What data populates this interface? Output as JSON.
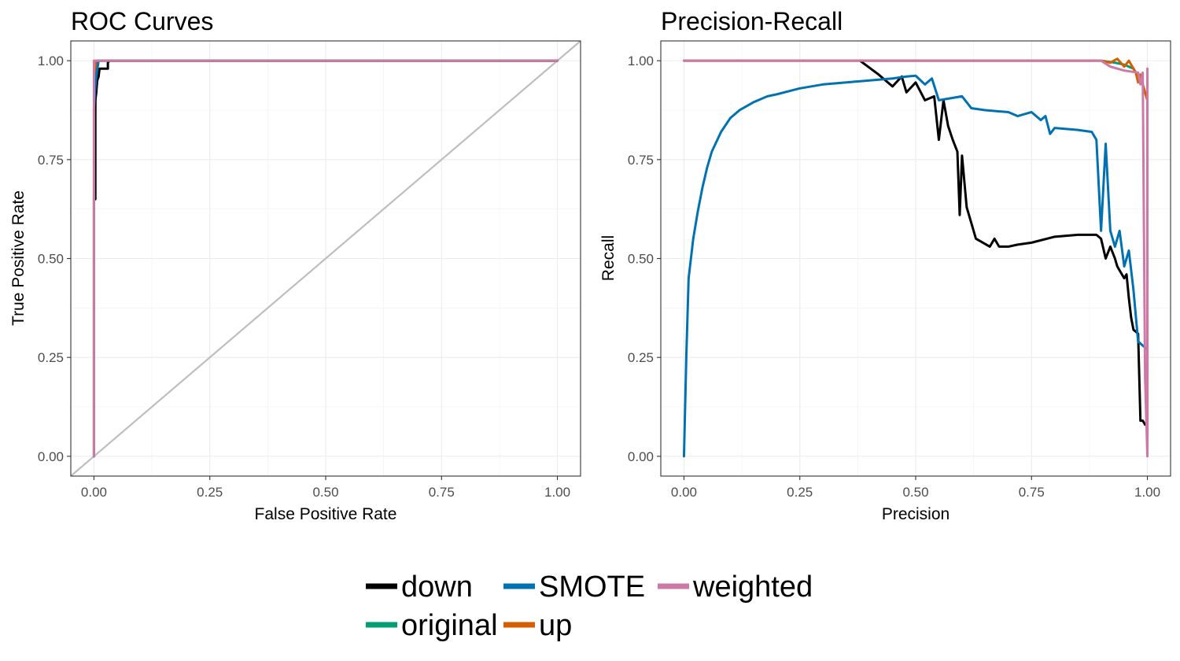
{
  "chart_data": [
    {
      "type": "line",
      "title": "ROC Curves",
      "xlabel": "False Positive Rate",
      "ylabel": "True Positive Rate",
      "xlim": [
        -0.05,
        1.05
      ],
      "ylim": [
        -0.05,
        1.05
      ],
      "xticks": [
        0,
        0.25,
        0.5,
        0.75,
        1
      ],
      "yticks": [
        0,
        0.25,
        0.5,
        0.75,
        1
      ],
      "xtick_labels": [
        "0.00",
        "0.25",
        "0.50",
        "0.75",
        "1.00"
      ],
      "ytick_labels": [
        "0.00",
        "0.25",
        "0.50",
        "0.75",
        "1.00"
      ],
      "grid": true,
      "reference_line": {
        "color": "#bebebe",
        "x": [
          -0.05,
          1.05
        ],
        "y": [
          -0.05,
          1.05
        ]
      },
      "series": [
        {
          "name": "original",
          "color": "#009E73",
          "x": [
            0,
            0,
            0.003,
            0.004,
            0.006,
            1
          ],
          "y": [
            0,
            0.65,
            0.9,
            0.96,
            1,
            1
          ]
        },
        {
          "name": "up",
          "color": "#D55E00",
          "x": [
            0,
            0,
            0.003,
            0.005,
            1
          ],
          "y": [
            0,
            0.7,
            0.95,
            1,
            1
          ]
        },
        {
          "name": "down",
          "color": "#000000",
          "x": [
            0.003,
            0.003,
            0.005,
            0.007,
            0.01,
            0.012,
            0.03,
            0.03,
            0.033,
            1
          ],
          "y": [
            0.65,
            0.9,
            0.92,
            0.95,
            0.96,
            0.98,
            0.98,
            0.995,
            1,
            1
          ]
        },
        {
          "name": "SMOTE",
          "color": "#0072B2",
          "x": [
            0,
            0,
            0.002,
            0.004,
            0.006,
            0.01,
            1
          ],
          "y": [
            0,
            0.88,
            0.92,
            0.95,
            0.97,
            1,
            1
          ]
        },
        {
          "name": "weighted",
          "color": "#CC79A7",
          "x": [
            0,
            0,
            1
          ],
          "y": [
            0,
            1,
            1
          ]
        }
      ]
    },
    {
      "type": "line",
      "title": "Precision-Recall",
      "xlabel": "Precision",
      "ylabel": "Recall",
      "xlim": [
        -0.05,
        1.05
      ],
      "ylim": [
        -0.05,
        1.05
      ],
      "xticks": [
        0,
        0.25,
        0.5,
        0.75,
        1
      ],
      "yticks": [
        0,
        0.25,
        0.5,
        0.75,
        1
      ],
      "xtick_labels": [
        "0.00",
        "0.25",
        "0.50",
        "0.75",
        "1.00"
      ],
      "ytick_labels": [
        "0.00",
        "0.25",
        "0.50",
        "0.75",
        "1.00"
      ],
      "grid": true,
      "series": [
        {
          "name": "original",
          "color": "#009E73",
          "x": [
            0,
            0.9,
            0.93,
            0.95,
            0.97,
            0.98,
            0.99,
            1,
            1
          ],
          "y": [
            1,
            1,
            0.995,
            0.99,
            0.98,
            0.96,
            0.94,
            0.9,
            0.05
          ]
        },
        {
          "name": "up",
          "color": "#D55E00",
          "x": [
            0,
            0.9,
            0.92,
            0.935,
            0.95,
            0.96,
            0.975,
            0.98,
            0.985,
            0.99,
            1,
            1
          ],
          "y": [
            1,
            1,
            0.995,
            1.005,
            0.985,
            1.0,
            0.97,
            0.945,
            0.965,
            0.94,
            0.9,
            0.05
          ]
        },
        {
          "name": "down",
          "color": "#000000",
          "x": [
            0.38,
            0.42,
            0.45,
            0.47,
            0.48,
            0.5,
            0.52,
            0.54,
            0.55,
            0.56,
            0.57,
            0.58,
            0.59,
            0.595,
            0.6,
            0.61,
            0.63,
            0.66,
            0.67,
            0.68,
            0.7,
            0.72,
            0.75,
            0.8,
            0.85,
            0.89,
            0.9,
            0.91,
            0.92,
            0.93,
            0.935,
            0.94,
            0.95,
            0.955,
            0.96,
            0.965,
            0.97,
            0.98,
            0.985,
            0.99,
            0.995
          ],
          "y": [
            1,
            0.965,
            0.935,
            0.96,
            0.92,
            0.945,
            0.9,
            0.91,
            0.8,
            0.9,
            0.835,
            0.8,
            0.77,
            0.61,
            0.76,
            0.63,
            0.55,
            0.53,
            0.55,
            0.53,
            0.53,
            0.535,
            0.54,
            0.555,
            0.56,
            0.56,
            0.55,
            0.5,
            0.53,
            0.5,
            0.48,
            0.47,
            0.45,
            0.46,
            0.4,
            0.35,
            0.32,
            0.31,
            0.09,
            0.09,
            0.08
          ]
        },
        {
          "name": "SMOTE",
          "color": "#0072B2",
          "x": [
            0,
            0.005,
            0.01,
            0.02,
            0.03,
            0.04,
            0.05,
            0.06,
            0.08,
            0.1,
            0.12,
            0.15,
            0.18,
            0.2,
            0.25,
            0.3,
            0.35,
            0.4,
            0.45,
            0.48,
            0.5,
            0.52,
            0.535,
            0.55,
            0.6,
            0.62,
            0.65,
            0.7,
            0.72,
            0.75,
            0.77,
            0.78,
            0.79,
            0.8,
            0.85,
            0.88,
            0.89,
            0.9,
            0.91,
            0.92,
            0.93,
            0.94,
            0.95,
            0.96,
            0.97,
            0.98,
            0.99,
            1
          ],
          "y": [
            0,
            0.25,
            0.45,
            0.55,
            0.62,
            0.68,
            0.73,
            0.77,
            0.82,
            0.855,
            0.875,
            0.895,
            0.91,
            0.915,
            0.93,
            0.94,
            0.945,
            0.95,
            0.955,
            0.96,
            0.962,
            0.94,
            0.955,
            0.9,
            0.91,
            0.88,
            0.875,
            0.87,
            0.86,
            0.87,
            0.85,
            0.86,
            0.815,
            0.83,
            0.825,
            0.82,
            0.8,
            0.57,
            0.79,
            0.57,
            0.53,
            0.57,
            0.48,
            0.52,
            0.42,
            0.29,
            0.28,
            0.27
          ]
        },
        {
          "name": "weighted",
          "color": "#CC79A7",
          "x": [
            0,
            0.5,
            0.9,
            0.92,
            0.95,
            0.98,
            0.985,
            0.99,
            0.995,
            1,
            1
          ],
          "y": [
            1,
            1,
            1,
            0.985,
            0.975,
            0.97,
            0.94,
            0.97,
            0.2,
            0,
            0.98
          ]
        }
      ]
    }
  ],
  "legend": {
    "position": "bottom",
    "items": [
      {
        "name": "down",
        "color": "#000000"
      },
      {
        "name": "SMOTE",
        "color": "#0072B2"
      },
      {
        "name": "weighted",
        "color": "#CC79A7"
      },
      {
        "name": "original",
        "color": "#009E73"
      },
      {
        "name": "up",
        "color": "#D55E00"
      }
    ]
  }
}
